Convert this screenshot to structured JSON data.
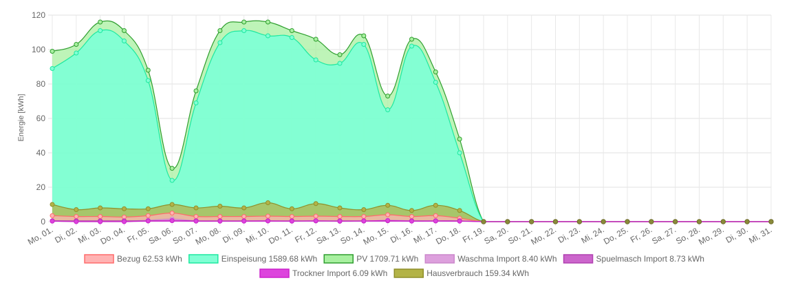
{
  "chart_data": {
    "type": "area",
    "ylabel": "Energie [kWh]",
    "ylim": [
      0,
      120
    ],
    "yticks": [
      0,
      20,
      40,
      60,
      80,
      100,
      120
    ],
    "grid": true,
    "legend_position": "bottom",
    "categories": [
      "Mo, 01.",
      "Di, 02.",
      "Mi, 03.",
      "Do, 04.",
      "Fr, 05.",
      "Sa, 06.",
      "So, 07.",
      "Mo, 08.",
      "Di, 09.",
      "Mi, 10.",
      "Do, 11.",
      "Fr, 12.",
      "Sa, 13.",
      "So, 14.",
      "Mo, 15.",
      "Di, 16.",
      "Mi, 17.",
      "Do, 18.",
      "Fr, 19.",
      "Sa, 20.",
      "So, 21.",
      "Mo, 22.",
      "Di, 23.",
      "Mi, 24.",
      "Do, 25.",
      "Fr, 26.",
      "Sa, 27.",
      "So, 28.",
      "Mo, 29.",
      "Di, 30.",
      "Mi, 31."
    ],
    "series": [
      {
        "name": "Bezug 62.53 kWh",
        "stroke": "#ff6b6b",
        "fill": "#ffb3b3",
        "values": [
          3.5,
          3,
          3,
          2.7,
          3.5,
          5,
          3,
          3,
          3,
          3.2,
          3,
          3.2,
          3,
          3,
          4,
          3,
          3.5,
          2,
          0,
          0,
          0,
          0,
          0,
          0,
          0,
          0,
          0,
          0,
          0,
          0,
          0
        ]
      },
      {
        "name": "Einspeisung 1589.68 kWh",
        "stroke": "#1de9a0",
        "fill": "#80ffd4",
        "values": [
          89,
          98,
          111,
          105,
          82,
          24,
          69,
          104,
          111,
          108,
          107,
          94,
          92,
          103,
          65,
          102,
          81,
          40,
          0,
          0,
          0,
          0,
          0,
          0,
          0,
          0,
          0,
          0,
          0,
          0,
          0
        ]
      },
      {
        "name": "PV 1709.71 kWh",
        "stroke": "#2e9e2e",
        "fill": "#a8f0a0",
        "values": [
          99,
          103,
          116,
          111,
          88,
          31,
          76,
          111,
          116,
          116,
          111,
          106,
          97,
          108,
          73,
          106,
          87,
          48,
          0,
          0,
          0,
          0,
          0,
          0,
          0,
          0,
          0,
          0,
          0,
          0,
          0
        ]
      },
      {
        "name": "Waschma Import 8.40 kWh",
        "stroke": "#cc88cc",
        "fill": "#dda0dd",
        "values": [
          0.5,
          0.2,
          0,
          0.3,
          0.8,
          1.5,
          0.5,
          0.3,
          0.4,
          0.5,
          0.3,
          0.4,
          0.2,
          0.3,
          0.8,
          0.5,
          0.4,
          0.4,
          0,
          0,
          0,
          0,
          0,
          0,
          0,
          0,
          0,
          0,
          0,
          0,
          0
        ]
      },
      {
        "name": "Spuelmasch Import 8.73 kWh",
        "stroke": "#b040b0",
        "fill": "#cc66cc",
        "values": [
          0.5,
          0.5,
          0.5,
          0.5,
          0.5,
          0.6,
          0.5,
          0.5,
          0.5,
          0.5,
          0.5,
          0.5,
          0.5,
          0.5,
          0.5,
          0.5,
          0.5,
          0.5,
          0,
          0,
          0,
          0,
          0,
          0,
          0,
          0,
          0,
          0,
          0,
          0,
          0
        ]
      },
      {
        "name": "Trockner Import 6.09 kWh",
        "stroke": "#cc22cc",
        "fill": "#dd44dd",
        "values": [
          0.3,
          0,
          0,
          0,
          0.4,
          0.6,
          0.3,
          0.3,
          0.3,
          0.4,
          0.3,
          0.5,
          0.3,
          0.4,
          0.6,
          0.3,
          0.4,
          0.3,
          0,
          0,
          0,
          0,
          0,
          0,
          0,
          0,
          0,
          0,
          0,
          0,
          0
        ]
      },
      {
        "name": "Hausverbrauch 159.34 kWh",
        "stroke": "#8f8f2a",
        "fill": "#b3b347",
        "values": [
          10,
          7,
          8,
          7.5,
          7.5,
          10,
          8,
          9,
          8,
          11,
          7.5,
          10.5,
          8,
          7,
          9.5,
          6.5,
          9.5,
          6.5,
          0,
          0,
          0,
          0,
          0,
          0,
          0,
          0,
          0,
          0,
          0,
          0,
          0
        ]
      }
    ]
  }
}
